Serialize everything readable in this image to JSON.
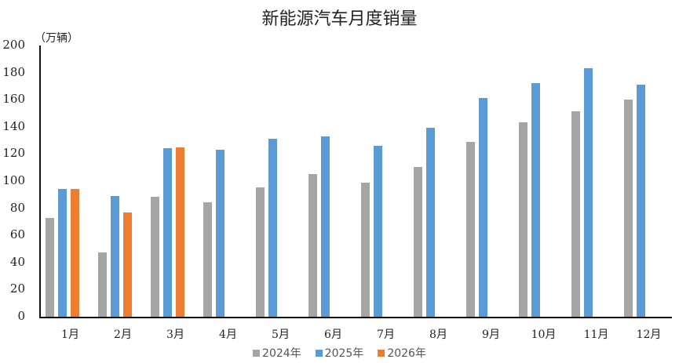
{
  "chart_data": {
    "type": "bar",
    "title": "新能源汽车月度销量",
    "unit_label": "（万辆）",
    "xlabel": "",
    "ylabel": "（万辆）",
    "ylim": [
      0,
      200
    ],
    "yticks": [
      0,
      20,
      40,
      60,
      80,
      100,
      120,
      140,
      160,
      180,
      200
    ],
    "grid": false,
    "legend_position": "bottom",
    "categories": [
      "1月",
      "2月",
      "3月",
      "4月",
      "5月",
      "6月",
      "7月",
      "8月",
      "9月",
      "10月",
      "11月",
      "12月"
    ],
    "series": [
      {
        "name": "2024年",
        "color": "#A5A5A5",
        "values": [
          73,
          47.5,
          88.5,
          84.5,
          95.5,
          105.5,
          99,
          110.5,
          129,
          143.5,
          151.5,
          160
        ]
      },
      {
        "name": "2025年",
        "color": "#5B9BD5",
        "values": [
          94.5,
          89,
          124,
          123,
          131,
          133,
          126,
          139.5,
          161,
          172,
          183,
          171
        ]
      },
      {
        "name": "2026年",
        "color": "#ED7D31",
        "values": [
          94.5,
          77,
          125,
          null,
          null,
          null,
          null,
          null,
          null,
          null,
          null,
          null
        ]
      }
    ]
  }
}
